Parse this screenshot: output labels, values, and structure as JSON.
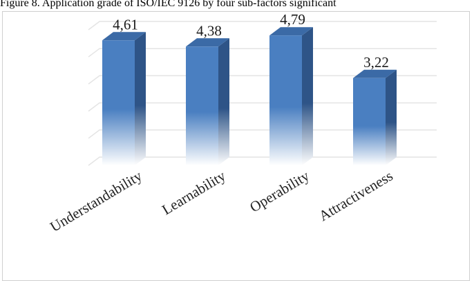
{
  "caption": "Figure 8. Application grade of ISO/IEC 9126 by four sub-factors significant",
  "chart_data": {
    "type": "bar",
    "categories": [
      "Understandability",
      "Learnability",
      "Operability",
      "Attractiveness"
    ],
    "values": [
      4.61,
      4.38,
      4.79,
      3.22
    ],
    "value_labels": [
      "4,61",
      "4,38",
      "4,79",
      "3,22"
    ],
    "title": "",
    "xlabel": "",
    "ylabel": "",
    "ylim": [
      0,
      5
    ],
    "grid": true,
    "legend": "none",
    "style": "3d-column",
    "colors": {
      "bar_front": "#4a7fc1",
      "bar_side": "#2e5487",
      "bar_top": "#3b6aa6",
      "grid": "#e4e4e4"
    }
  }
}
